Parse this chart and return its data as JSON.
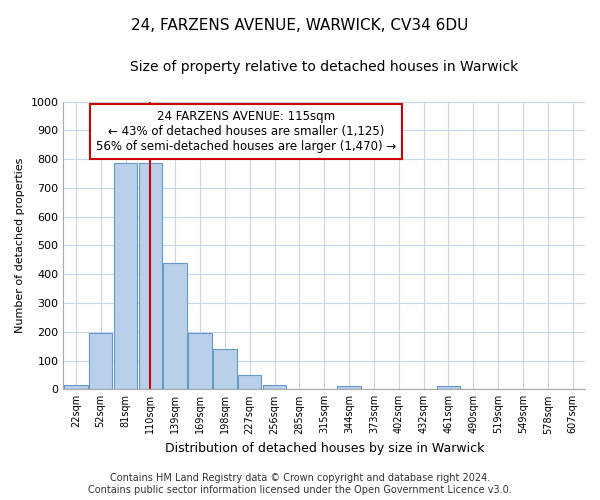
{
  "title1": "24, FARZENS AVENUE, WARWICK, CV34 6DU",
  "title2": "Size of property relative to detached houses in Warwick",
  "xlabel": "Distribution of detached houses by size in Warwick",
  "ylabel": "Number of detached properties",
  "footer": "Contains HM Land Registry data © Crown copyright and database right 2024.\nContains public sector information licensed under the Open Government Licence v3.0.",
  "categories": [
    "22sqm",
    "52sqm",
    "81sqm",
    "110sqm",
    "139sqm",
    "169sqm",
    "198sqm",
    "227sqm",
    "256sqm",
    "285sqm",
    "315sqm",
    "344sqm",
    "373sqm",
    "402sqm",
    "432sqm",
    "461sqm",
    "490sqm",
    "519sqm",
    "549sqm",
    "578sqm",
    "607sqm"
  ],
  "values": [
    15,
    195,
    785,
    785,
    440,
    195,
    140,
    50,
    15,
    0,
    0,
    10,
    0,
    0,
    0,
    10,
    0,
    0,
    0,
    0,
    0
  ],
  "bar_color": "#b8d0ea",
  "bar_edge_color": "#6699cc",
  "vline_x": 3.0,
  "vline_color": "#cc0000",
  "ylim": [
    0,
    1000
  ],
  "yticks": [
    0,
    100,
    200,
    300,
    400,
    500,
    600,
    700,
    800,
    900,
    1000
  ],
  "annotation_title": "24 FARZENS AVENUE: 115sqm",
  "annotation_line1": "← 43% of detached houses are smaller (1,125)",
  "annotation_line2": "56% of semi-detached houses are larger (1,470) →",
  "annotation_box_color": "#cc0000",
  "bg_color": "#ffffff",
  "plot_bg_color": "#ffffff",
  "grid_color": "#c8d8ec",
  "title1_fontsize": 11,
  "title2_fontsize": 10,
  "xlabel_fontsize": 9,
  "ylabel_fontsize": 8,
  "footer_fontsize": 7
}
